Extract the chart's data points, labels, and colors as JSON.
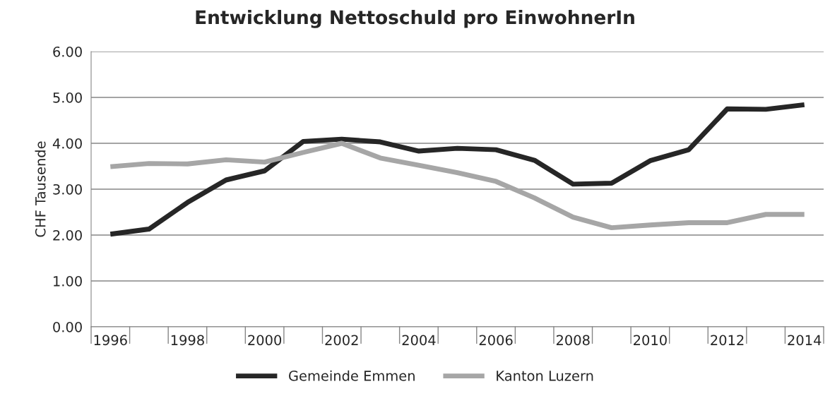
{
  "chart_data": {
    "type": "line",
    "title": "Entwicklung Nettoschuld pro EinwohnerIn",
    "ylabel": "CHF Tausende",
    "categories": [
      "1996",
      null,
      "1998",
      null,
      "2000",
      null,
      "2002",
      null,
      "2004",
      null,
      "2006",
      null,
      "2008",
      null,
      "2010",
      null,
      "2012",
      null,
      "2014"
    ],
    "series": [
      {
        "name": "Gemeinde Emmen",
        "color": "#262626",
        "values": [
          2.02,
          2.13,
          2.71,
          3.2,
          3.4,
          4.04,
          4.09,
          4.03,
          3.83,
          3.89,
          3.86,
          3.63,
          3.11,
          3.13,
          3.62,
          3.86,
          4.75,
          4.74,
          4.84
        ]
      },
      {
        "name": "Kanton Luzern",
        "color": "#a6a6a6",
        "values": [
          3.49,
          3.56,
          3.55,
          3.64,
          3.59,
          3.8,
          4.0,
          3.68,
          3.52,
          3.36,
          3.17,
          2.81,
          2.39,
          2.16,
          2.22,
          2.27,
          2.27,
          2.45,
          2.45
        ]
      }
    ],
    "ylim": [
      0,
      6
    ],
    "yticks": [
      {
        "value": 0,
        "label": "0.00"
      },
      {
        "value": 1,
        "label": "1.00"
      },
      {
        "value": 2,
        "label": "2.00"
      },
      {
        "value": 3,
        "label": "3.00"
      },
      {
        "value": 4,
        "label": "4.00"
      },
      {
        "value": 5,
        "label": "5.00"
      },
      {
        "value": 6,
        "label": "6.00"
      }
    ],
    "grid": "y",
    "legend": "bottom",
    "marker": "none",
    "line_style": "solid"
  }
}
